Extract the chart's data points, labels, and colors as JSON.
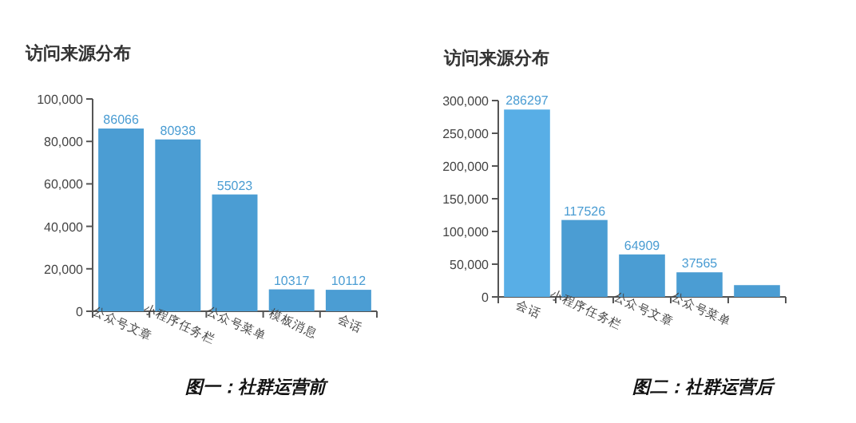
{
  "chart_data": [
    {
      "type": "bar",
      "title": "访问来源分布",
      "categories": [
        "公众号文章",
        "小程序任务栏",
        "公众号菜单",
        "模板消息",
        "会话"
      ],
      "values": [
        86066,
        80938,
        55023,
        10317,
        10112
      ],
      "color": "#4b9dd3",
      "ylim": [
        0,
        100000
      ],
      "yticks": [
        {
          "value": 0,
          "label": "0"
        },
        {
          "value": 20000,
          "label": "20,000"
        },
        {
          "value": 40000,
          "label": "40,000"
        },
        {
          "value": 60000,
          "label": "60,000"
        },
        {
          "value": 80000,
          "label": "80,000"
        },
        {
          "value": 100000,
          "label": "100,000"
        }
      ],
      "data_labels": true,
      "annotations": [
        "图一：社群运营前"
      ]
    },
    {
      "type": "bar",
      "title": "访问来源分布",
      "categories": [
        "会话",
        "小程序任务栏",
        "公众号文章",
        "公众号菜单",
        null
      ],
      "values": [
        286297,
        117526,
        64909,
        37565,
        18000
      ],
      "colors": [
        "#58aee6",
        "#4b9dd3",
        "#4b9dd3",
        "#4b9dd3",
        "#4b9dd3"
      ],
      "ylim": [
        0,
        300000
      ],
      "yticks": [
        {
          "value": 0,
          "label": "0"
        },
        {
          "value": 50000,
          "label": "50,000"
        },
        {
          "value": 100000,
          "label": "100,000"
        },
        {
          "value": 150000,
          "label": "150,000"
        },
        {
          "value": 200000,
          "label": "200,000"
        },
        {
          "value": 250000,
          "label": "250,000"
        },
        {
          "value": 300000,
          "label": "300,000"
        }
      ],
      "value_labels": [
        "286297",
        "117526",
        "64909",
        "37565",
        null
      ],
      "annotations": [
        "图二：社群运营后"
      ]
    }
  ]
}
